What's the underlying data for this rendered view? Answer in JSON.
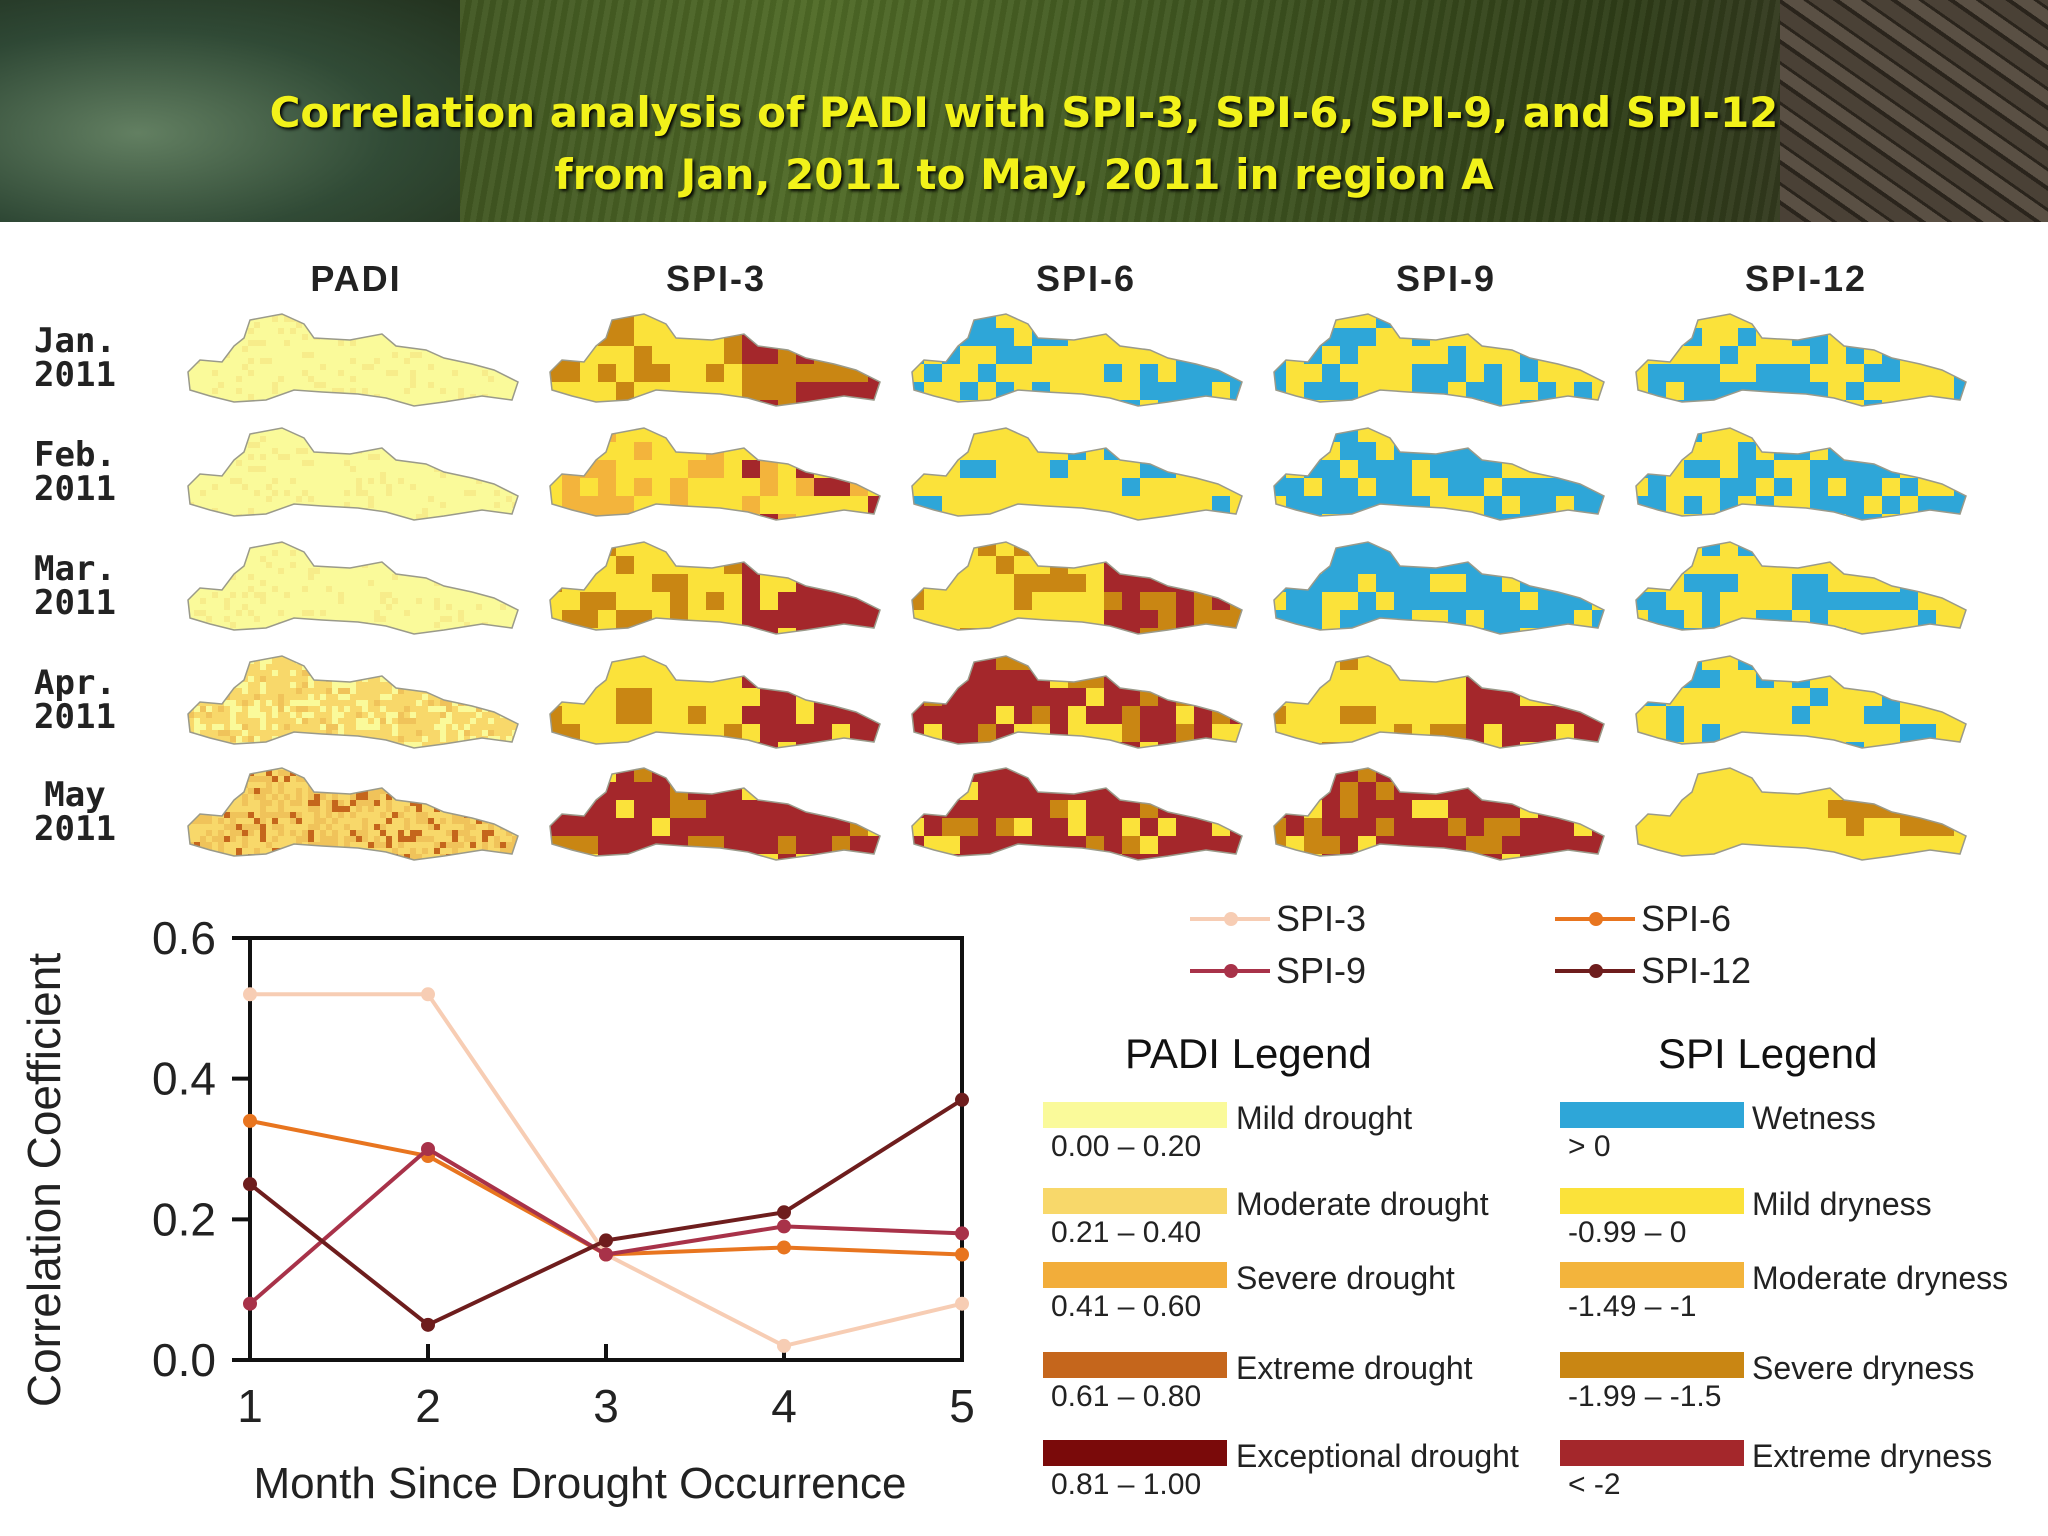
{
  "header": {
    "title_line1": "Correlation analysis of PADI with SPI-3, SPI-6, SPI-9, and SPI-12",
    "title_line2": "from Jan, 2011 to May, 2011 in region A"
  },
  "maps": {
    "columns": [
      "PADI",
      "SPI-3",
      "SPI-6",
      "SPI-9",
      "SPI-12"
    ],
    "rows": [
      {
        "month": "Jan.",
        "year": "2011"
      },
      {
        "month": "Feb.",
        "year": "2011"
      },
      {
        "month": "Mar.",
        "year": "2011"
      },
      {
        "month": "Apr.",
        "year": "2011"
      },
      {
        "month": "May",
        "year": "2011"
      }
    ],
    "dominant_classes": [
      [
        "mild",
        "moderate-extreme",
        "wet-mild",
        "wet-mild",
        "wet-mild"
      ],
      [
        "mild",
        "mild-moderate",
        "mild",
        "wet",
        "wet"
      ],
      [
        "mild",
        "mild-extreme",
        "moderate-extreme",
        "wet",
        "wet-mild"
      ],
      [
        "moderate",
        "mild-extreme",
        "extreme",
        "mild-extreme",
        "mild-wet"
      ],
      [
        "severe",
        "extreme",
        "extreme",
        "extreme",
        "mild-severe"
      ]
    ]
  },
  "chart_data": {
    "type": "line",
    "xlabel": "Month Since Drought Occurrence",
    "ylabel": "Correlation Coefficient",
    "x": [
      1,
      2,
      3,
      4,
      5
    ],
    "xlim": [
      1,
      5
    ],
    "ylim": [
      0,
      0.6
    ],
    "yticks": [
      "0.0",
      "0.2",
      "0.4",
      "0.6"
    ],
    "xticks": [
      "1",
      "2",
      "3",
      "4",
      "5"
    ],
    "series": [
      {
        "name": "SPI-3",
        "color": "#f7cdb4",
        "values": [
          0.52,
          0.52,
          0.15,
          0.02,
          0.08
        ]
      },
      {
        "name": "SPI-6",
        "color": "#e8751f",
        "values": [
          0.34,
          0.29,
          0.15,
          0.16,
          0.15
        ]
      },
      {
        "name": "SPI-9",
        "color": "#a83249",
        "values": [
          0.08,
          0.3,
          0.15,
          0.19,
          0.18
        ]
      },
      {
        "name": "SPI-12",
        "color": "#6e1d1d",
        "values": [
          0.25,
          0.05,
          0.17,
          0.21,
          0.37
        ]
      }
    ]
  },
  "padi_legend": {
    "title": "PADI Legend",
    "items": [
      {
        "range": "0.00 – 0.20",
        "label": "Mild drought",
        "color": "#fafa9a"
      },
      {
        "range": "0.21 – 0.40",
        "label": "Moderate drought",
        "color": "#f8d86a"
      },
      {
        "range": "0.41 – 0.60",
        "label": "Severe drought",
        "color": "#f2ad3a"
      },
      {
        "range": "0.61 – 0.80",
        "label": "Extreme drought",
        "color": "#c5661c"
      },
      {
        "range": "0.81 – 1.00",
        "label": "Exceptional drought",
        "color": "#7a0a0a"
      }
    ]
  },
  "spi_legend": {
    "title": "SPI Legend",
    "items": [
      {
        "range": "> 0",
        "label": "Wetness",
        "color": "#2ea6d8"
      },
      {
        "range": "-0.99 – 0",
        "label": "Mild dryness",
        "color": "#fbe23a"
      },
      {
        "range": "-1.49 – -1",
        "label": "Moderate dryness",
        "color": "#f3b43c"
      },
      {
        "range": "-1.99 – -1.5",
        "label": "Severe dryness",
        "color": "#c98613"
      },
      {
        "range": "< -2",
        "label": "Extreme dryness",
        "color": "#a4272b"
      }
    ]
  }
}
